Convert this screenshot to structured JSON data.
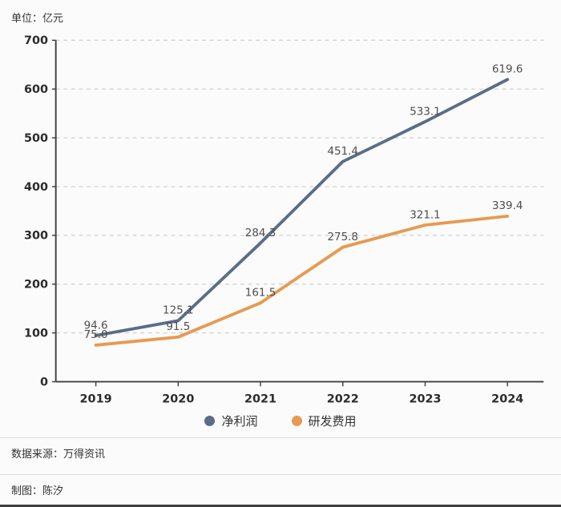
{
  "unit_label": "单位：亿元",
  "chart_data": {
    "type": "line",
    "x": [
      "2019",
      "2020",
      "2021",
      "2022",
      "2023",
      "2024"
    ],
    "series": [
      {
        "name": "净利润",
        "color": "#5a6d88",
        "values": [
          94.6,
          125.1,
          284.3,
          451.4,
          533.1,
          619.6
        ]
      },
      {
        "name": "研发费用",
        "color": "#e79a4f",
        "values": [
          75.0,
          91.5,
          161.5,
          275.8,
          321.1,
          339.4
        ]
      }
    ],
    "ylim": [
      0,
      700
    ],
    "ytick_step": 100,
    "grid": "horizontal-dashed",
    "legend_position": "bottom"
  },
  "footer": {
    "source": "数据来源：万得资讯",
    "credit": "制图：陈汐"
  },
  "style": {
    "grid_color": "#cfcfcf",
    "axis_color": "#404040",
    "tick_label_color": "#2b2b2b",
    "data_label_color": "#4d4d4d"
  }
}
